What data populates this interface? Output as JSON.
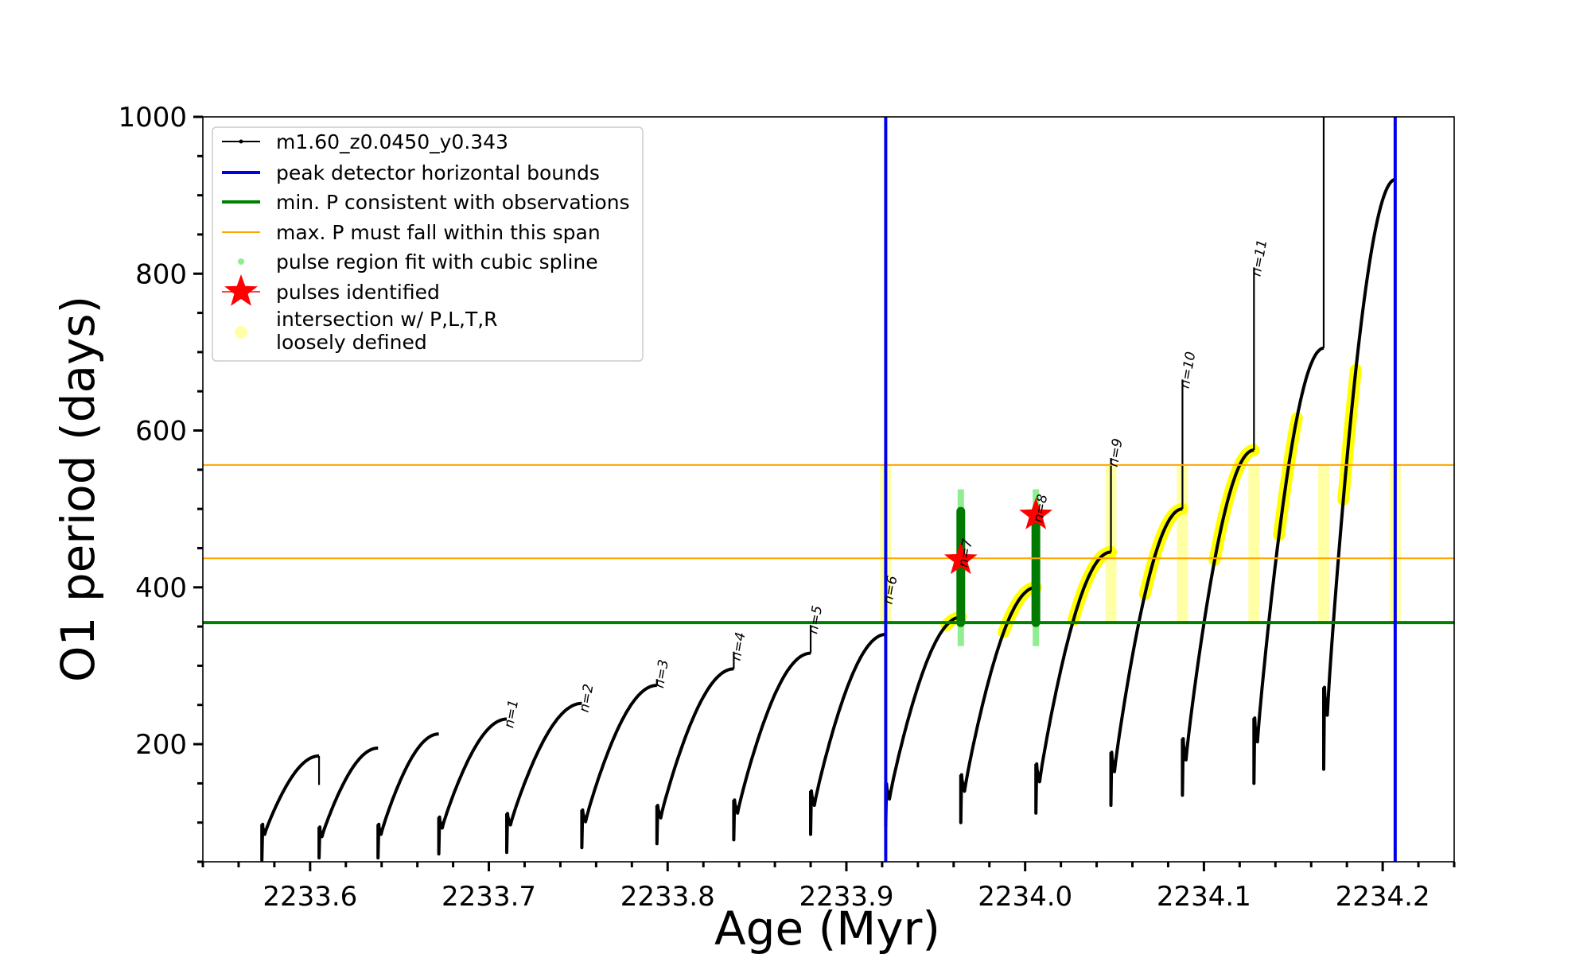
{
  "chart_data": {
    "type": "line",
    "xlabel": "Age (Myr)",
    "ylabel": "O1 period (days)",
    "xlim": [
      2233.54,
      2234.24
    ],
    "ylim": [
      50,
      1000
    ],
    "xticks": [
      "2233.6",
      "2233.7",
      "2233.8",
      "2233.9",
      "2234.0",
      "2234.1",
      "2234.2"
    ],
    "xtick_values": [
      2233.6,
      2233.7,
      2233.8,
      2233.9,
      2234.0,
      2234.1,
      2234.2
    ],
    "yticks": [
      "200",
      "400",
      "600",
      "800",
      "1000"
    ],
    "ytick_values": [
      200,
      400,
      600,
      800,
      1000
    ],
    "grid": false,
    "legend_position": "top-left",
    "series": [
      {
        "name": "m1.60_z0.0450_y0.343",
        "color": "#000000",
        "cycles": [
          {
            "start": 2233.573,
            "low": 52,
            "trough": 85,
            "peak": 185,
            "end": 2233.605,
            "spike": 148
          },
          {
            "start": 2233.605,
            "low": 55,
            "trough": 82,
            "peak": 195,
            "end": 2233.638,
            "spike": 0
          },
          {
            "start": 2233.638,
            "low": 55,
            "trough": 85,
            "peak": 213,
            "end": 2233.672,
            "spike": 0
          },
          {
            "start": 2233.672,
            "low": 60,
            "trough": 93,
            "peak": 232,
            "end": 2233.71,
            "spike": 232
          },
          {
            "start": 2233.71,
            "low": 62,
            "trough": 97,
            "peak": 252,
            "end": 2233.752,
            "spike": 252
          },
          {
            "start": 2233.752,
            "low": 68,
            "trough": 101,
            "peak": 275,
            "end": 2233.794,
            "spike": 283
          },
          {
            "start": 2233.794,
            "low": 73,
            "trough": 106,
            "peak": 296,
            "end": 2233.837,
            "spike": 318
          },
          {
            "start": 2233.837,
            "low": 78,
            "trough": 112,
            "peak": 316,
            "end": 2233.88,
            "spike": 352
          },
          {
            "start": 2233.88,
            "low": 85,
            "trough": 122,
            "peak": 340,
            "end": 2233.922,
            "spike": 390
          },
          {
            "start": 2233.922,
            "low": 95,
            "trough": 130,
            "peak": 362,
            "end": 2233.964,
            "spike": 500
          },
          {
            "start": 2233.964,
            "low": 100,
            "trough": 140,
            "peak": 400,
            "end": 2234.006,
            "spike": 510
          },
          {
            "start": 2234.006,
            "low": 112,
            "trough": 152,
            "peak": 445,
            "end": 2234.048,
            "spike": 565
          },
          {
            "start": 2234.048,
            "low": 122,
            "trough": 165,
            "peak": 500,
            "end": 2234.088,
            "spike": 665
          },
          {
            "start": 2234.088,
            "low": 135,
            "trough": 180,
            "peak": 575,
            "end": 2234.128,
            "spike": 808
          },
          {
            "start": 2234.128,
            "low": 150,
            "trough": 203,
            "peak": 705,
            "end": 2234.167,
            "spike": 1000
          },
          {
            "start": 2234.167,
            "low": 168,
            "trough": 237,
            "peak": 920,
            "end": 2234.207,
            "spike": 0
          }
        ]
      },
      {
        "name": "peak detector horizontal bounds",
        "color": "#0000ee",
        "x": [
          2233.922,
          2234.207
        ]
      },
      {
        "name": "min. P consistent with observations",
        "color": "#008000",
        "y": [
          355
        ]
      },
      {
        "name": "max. P must fall within this span",
        "color": "#ffa500",
        "y": [
          437,
          556
        ]
      },
      {
        "name": "pulse region fit with cubic spline",
        "color": "#90ee90",
        "x": [
          2233.964,
          2234.006
        ],
        "ylim": [
          325,
          525
        ]
      },
      {
        "name": "pulses identified",
        "color": "#ff0000",
        "x": [
          2233.964,
          2234.006
        ],
        "y": [
          435,
          492
        ]
      },
      {
        "name": "intersection w/ P,L,T,R\nloosely defined",
        "color": "#ffff00"
      }
    ],
    "green_pulse_segments": [
      {
        "x": 2233.964,
        "ymin": 355,
        "ymax": 497
      },
      {
        "x": 2234.006,
        "ymin": 355,
        "ymax": 497
      }
    ],
    "yellow_segments": [
      {
        "x0": 2233.956,
        "x1": 2233.964
      },
      {
        "x0": 2233.988,
        "x1": 2234.006
      },
      {
        "x0": 2234.027,
        "x1": 2234.048
      },
      {
        "x0": 2234.067,
        "x1": 2234.088
      },
      {
        "x0": 2234.106,
        "x1": 2234.128
      },
      {
        "x0": 2234.142,
        "x1": 2234.152
      },
      {
        "x0": 2234.178,
        "x1": 2234.185
      }
    ],
    "loose_markers": [
      2233.922,
      2234.048,
      2234.088,
      2234.128,
      2234.167,
      2234.207
    ],
    "pulse_labels": [
      {
        "label": "n=1",
        "x": 2233.71,
        "y": 232
      },
      {
        "label": "n=2",
        "x": 2233.752,
        "y": 252
      },
      {
        "label": "n=3",
        "x": 2233.794,
        "y": 283
      },
      {
        "label": "n=4",
        "x": 2233.837,
        "y": 318
      },
      {
        "label": "n=5",
        "x": 2233.88,
        "y": 352
      },
      {
        "label": "n=6",
        "x": 2233.922,
        "y": 390
      },
      {
        "label": "n=7",
        "x": 2233.964,
        "y": 437
      },
      {
        "label": "n=8",
        "x": 2234.006,
        "y": 494
      },
      {
        "label": "n=9",
        "x": 2234.048,
        "y": 565
      },
      {
        "label": "n=10",
        "x": 2234.088,
        "y": 665
      },
      {
        "label": "n=11",
        "x": 2234.128,
        "y": 808
      }
    ]
  }
}
